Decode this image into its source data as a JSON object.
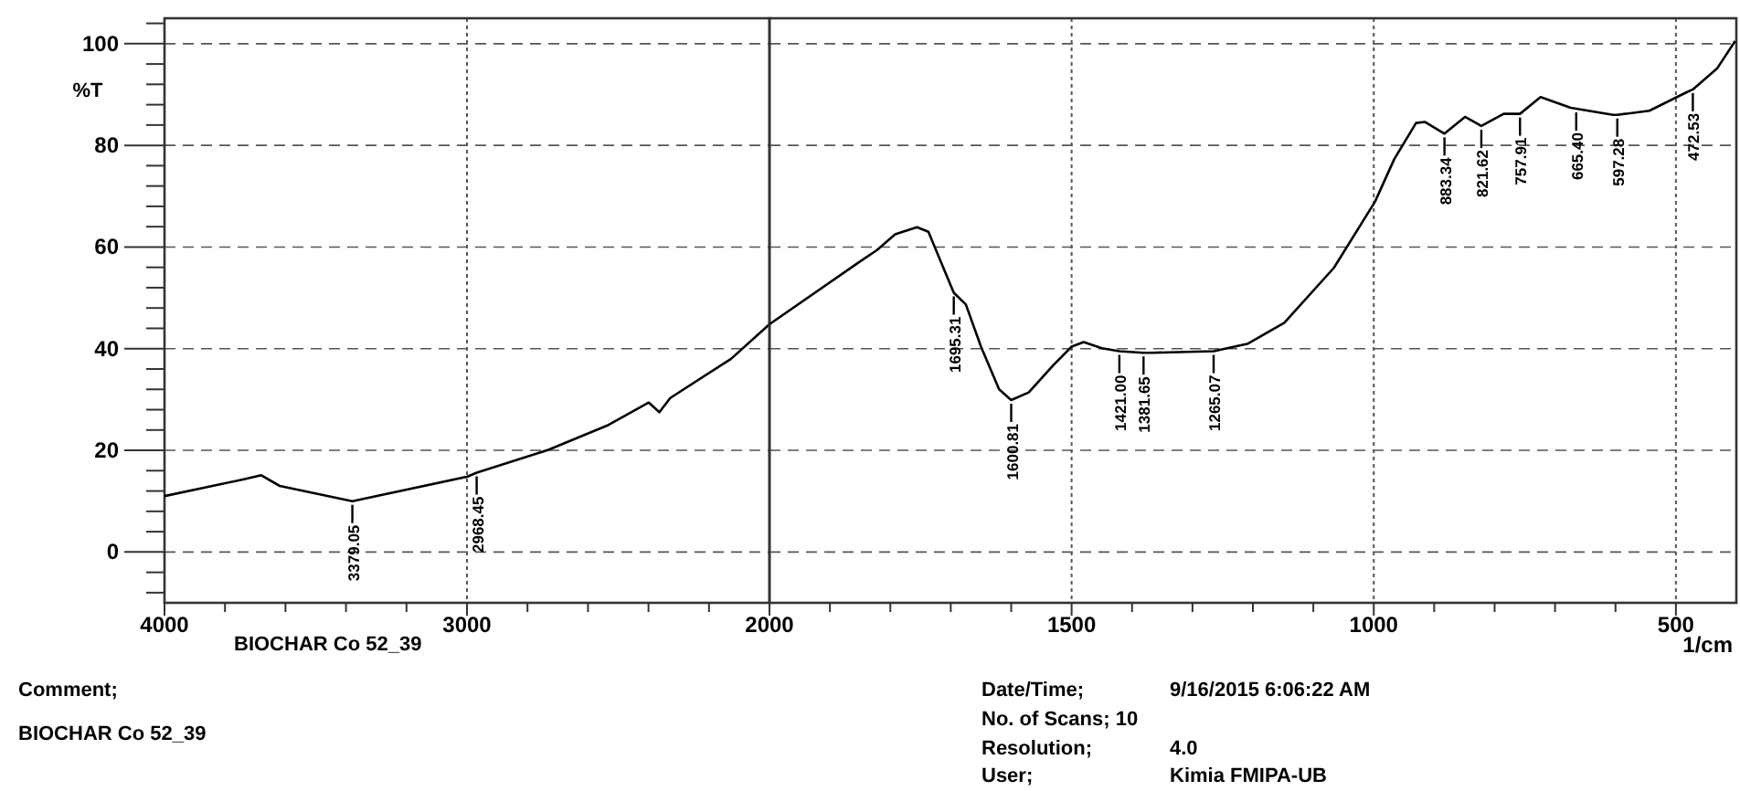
{
  "chart_data": [
    {
      "type": "line",
      "ylabel": "%T",
      "xlim": [
        4000,
        2000
      ],
      "xticks": [
        4000,
        {
          "value": 3800,
          "label": null
        },
        {
          "value": 3600,
          "label": null
        },
        {
          "value": 3400,
          "label": null
        },
        {
          "value": 3200,
          "label": null
        },
        3000,
        {
          "value": 2800,
          "label": null
        },
        {
          "value": 2600,
          "label": null
        },
        {
          "value": 2400,
          "label": null
        },
        {
          "value": 2200,
          "label": null
        },
        2000
      ],
      "ylim": [
        -10,
        105
      ],
      "yticks": [
        {
          "value": -8,
          "label": null
        },
        {
          "value": -4,
          "label": null
        },
        0,
        {
          "value": 4,
          "label": null
        },
        {
          "value": 8,
          "label": null
        },
        {
          "value": 12,
          "label": null
        },
        {
          "value": 16,
          "label": null
        },
        20,
        {
          "value": 24,
          "label": null
        },
        {
          "value": 28,
          "label": null
        },
        {
          "value": 32,
          "label": null
        },
        {
          "value": 36,
          "label": null
        },
        40,
        {
          "value": 44,
          "label": null
        },
        {
          "value": 48,
          "label": null
        },
        {
          "value": 52,
          "label": null
        },
        {
          "value": 56,
          "label": null
        },
        60,
        {
          "value": 64,
          "label": null
        },
        {
          "value": 68,
          "label": null
        },
        {
          "value": 72,
          "label": null
        },
        {
          "value": 76,
          "label": null
        },
        80,
        {
          "value": 84,
          "label": null
        },
        {
          "value": 88,
          "label": null
        },
        {
          "value": 92,
          "label": null
        },
        {
          "value": 96,
          "label": null
        },
        100,
        {
          "value": 104,
          "label": null
        }
      ],
      "grid": "y",
      "marker": "none",
      "line_style": "solid",
      "ref_lines": [
        {
          "axis": "x",
          "value": 3000,
          "line_style": "dotted",
          "color": "#555555"
        }
      ],
      "series": [
        {
          "color": "#000000",
          "x": [
            4000,
            3738,
            3680,
            3619,
            3379,
            3000,
            2968,
            2731,
            2532,
            2399,
            2364,
            2328,
            2127,
            2000
          ],
          "values": [
            11,
            14.3,
            15.1,
            13,
            10,
            14.8,
            15.6,
            20.1,
            25,
            29.4,
            27.5,
            30.3,
            38,
            44.8
          ]
        }
      ],
      "annotations": [
        {
          "text": "3379.05",
          "x": 3379,
          "y": 10
        },
        {
          "text": "2968.45",
          "x": 2968,
          "y": 15.6
        },
        "BIOCHAR Co 52_39",
        "Comment;",
        "BIOCHAR Co 52_39",
        "Date/Time;",
        "9/16/2015 6:06:22 AM",
        "No. of Scans; 10",
        "Resolution;",
        "4.0",
        "User;",
        "Kimia FMIPA-UB"
      ]
    },
    {
      "type": "line",
      "xlabel": "1/cm",
      "xlim": [
        2000,
        400
      ],
      "xticks": [
        {
          "value": 2000,
          "label": null
        },
        {
          "value": 1900,
          "label": null
        },
        {
          "value": 1800,
          "label": null
        },
        {
          "value": 1700,
          "label": null
        },
        {
          "value": 1600,
          "label": null
        },
        1500,
        {
          "value": 1400,
          "label": null
        },
        {
          "value": 1300,
          "label": null
        },
        {
          "value": 1200,
          "label": null
        },
        {
          "value": 1100,
          "label": null
        },
        1000,
        {
          "value": 900,
          "label": null
        },
        {
          "value": 800,
          "label": null
        },
        {
          "value": 700,
          "label": null
        },
        {
          "value": 600,
          "label": null
        },
        500
      ],
      "ylim": [
        -10,
        105
      ],
      "yticks": [
        0,
        20,
        40,
        60,
        80,
        100
      ],
      "tick_labels": "x",
      "grid": true,
      "marker": "none",
      "line_style": "solid",
      "series": [
        {
          "color": "#000000",
          "x": [
            2000,
            1852,
            1822,
            1792,
            1756,
            1737,
            1716,
            1695,
            1675,
            1650,
            1620,
            1600,
            1571,
            1530,
            1500,
            1480,
            1450,
            1421,
            1381,
            1369,
            1265,
            1208,
            1148,
            1066,
            998,
            966,
            930,
            915,
            883,
            849,
            822,
            785,
            758,
            724,
            674,
            604,
            597,
            544,
            483,
            472,
            432,
            402
          ],
          "values": [
            44.8,
            57,
            59.4,
            62.5,
            63.9,
            63,
            57,
            51,
            48.7,
            40.4,
            32,
            29.9,
            31.4,
            36.8,
            40.4,
            41.3,
            40.1,
            39.5,
            39.2,
            39.2,
            39.5,
            41,
            45.1,
            55.9,
            68.9,
            77.3,
            84.4,
            84.6,
            82.3,
            85.6,
            83.8,
            86.2,
            86.2,
            89.5,
            87.4,
            86,
            86,
            86.8,
            90.4,
            91,
            95.1,
            100.5
          ]
        }
      ],
      "annotations": [
        {
          "text": "1695.31",
          "x": 1695,
          "y": 51
        },
        {
          "text": "1600.81",
          "x": 1600,
          "y": 29.9
        },
        {
          "text": "1421.00",
          "x": 1421,
          "y": 39.5
        },
        {
          "text": "1381.65",
          "x": 1381,
          "y": 39.2
        },
        {
          "text": "1265.07",
          "x": 1265,
          "y": 39.5
        },
        {
          "text": "883.34",
          "x": 883,
          "y": 82.3
        },
        {
          "text": "821.62",
          "x": 822,
          "y": 83.8
        },
        {
          "text": "757.91",
          "x": 758,
          "y": 86.2
        },
        {
          "text": "665.40",
          "x": 665,
          "y": 87.2
        },
        {
          "text": "597.28",
          "x": 597,
          "y": 86
        },
        {
          "text": "472.53",
          "x": 472,
          "y": 91
        }
      ]
    }
  ]
}
